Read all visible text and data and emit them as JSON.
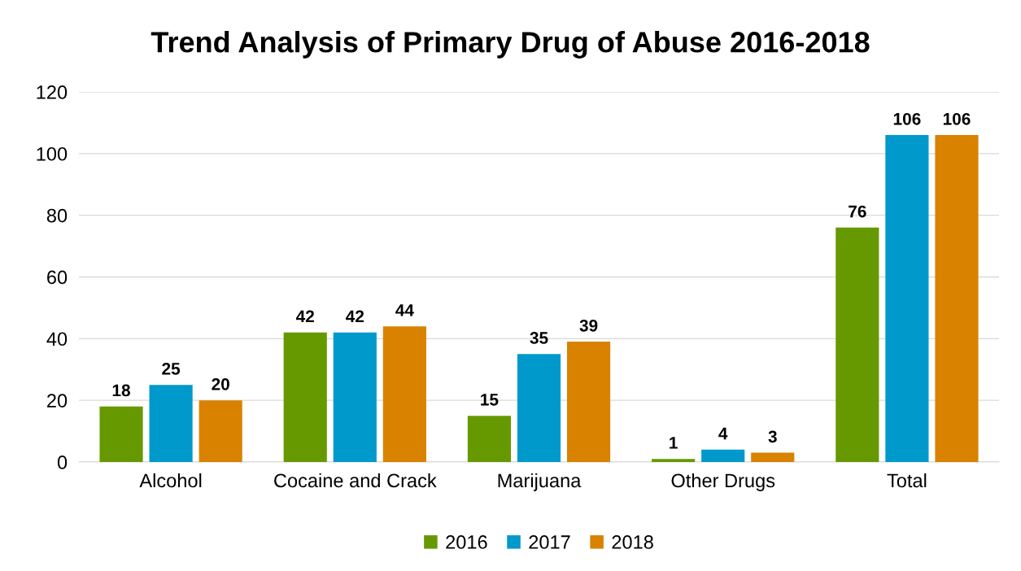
{
  "chart_data": {
    "type": "bar",
    "title": "Trend Analysis of Primary Drug of Abuse 2016-2018",
    "categories": [
      "Alcohol",
      "Cocaine and Crack",
      "Marijuana",
      "Other Drugs",
      "Total"
    ],
    "series": [
      {
        "name": "2016",
        "color": "#669900",
        "values": [
          18,
          42,
          15,
          1,
          76
        ]
      },
      {
        "name": "2017",
        "color": "#0099cc",
        "values": [
          25,
          42,
          35,
          4,
          106
        ]
      },
      {
        "name": "2018",
        "color": "#d98200",
        "values": [
          20,
          44,
          39,
          3,
          106
        ]
      }
    ],
    "ylim": [
      0,
      120
    ],
    "yticks": [
      0,
      20,
      40,
      60,
      80,
      100,
      120
    ],
    "grid": "y",
    "legend": "bottom",
    "data_labels": true
  }
}
